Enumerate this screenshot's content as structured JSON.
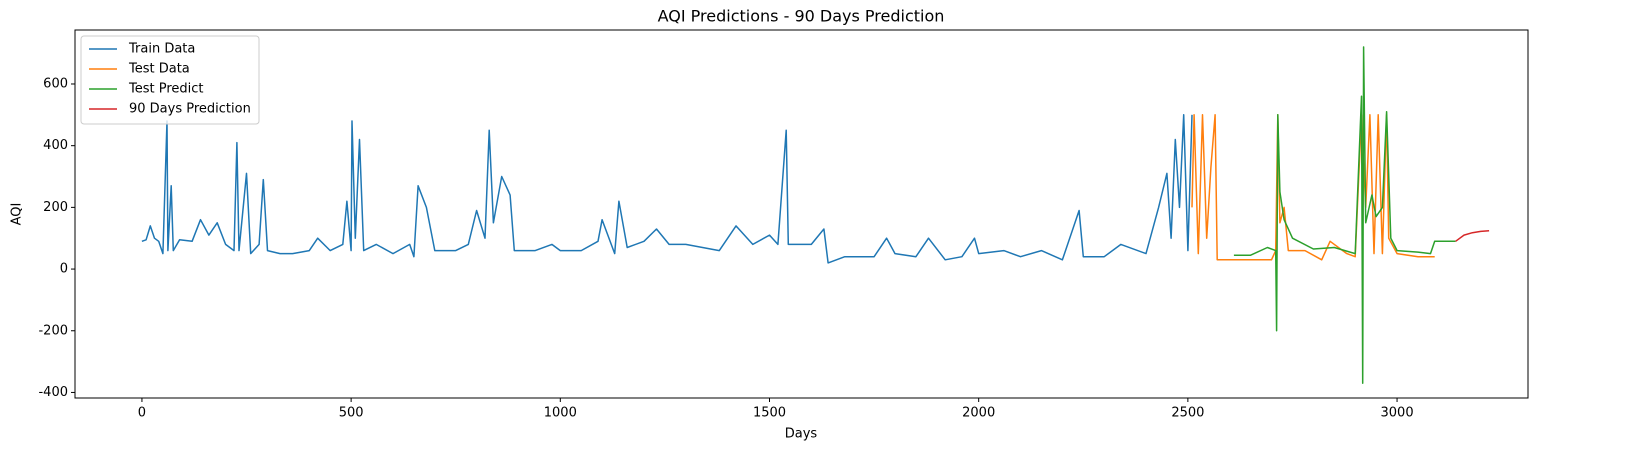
{
  "chart_data": {
    "type": "line",
    "title": "AQI Predictions - 90 Days Prediction",
    "xlabel": "Days",
    "ylabel": "AQI",
    "xlim": [
      -160,
      3313
    ],
    "ylim": [
      -418,
      775
    ],
    "xticks": [
      0,
      500,
      1000,
      1500,
      2000,
      2500,
      3000
    ],
    "yticks": [
      -400,
      -200,
      0,
      200,
      400,
      600
    ],
    "legend": "upper left",
    "series": [
      {
        "name": "Train Data",
        "color": "#1f77b4",
        "x": [
          0,
          10,
          20,
          30,
          40,
          50,
          60,
          62,
          70,
          75,
          90,
          120,
          140,
          160,
          180,
          200,
          220,
          227,
          232,
          250,
          260,
          280,
          290,
          300,
          330,
          360,
          400,
          420,
          450,
          480,
          490,
          500,
          502,
          510,
          520,
          530,
          560,
          600,
          640,
          650,
          660,
          680,
          700,
          750,
          780,
          800,
          820,
          830,
          840,
          860,
          880,
          890,
          940,
          980,
          1000,
          1050,
          1090,
          1100,
          1130,
          1140,
          1160,
          1200,
          1230,
          1260,
          1300,
          1380,
          1420,
          1460,
          1500,
          1520,
          1540,
          1545,
          1600,
          1630,
          1640,
          1680,
          1750,
          1780,
          1800,
          1850,
          1880,
          1920,
          1960,
          1990,
          2000,
          2060,
          2100,
          2150,
          2200,
          2240,
          2250,
          2300,
          2340,
          2400,
          2430,
          2450,
          2460,
          2470,
          2480,
          2490,
          2500,
          2510
        ],
        "values": [
          90,
          95,
          140,
          100,
          90,
          50,
          480,
          60,
          270,
          60,
          95,
          90,
          160,
          110,
          150,
          80,
          60,
          410,
          60,
          310,
          50,
          80,
          290,
          60,
          50,
          50,
          60,
          100,
          60,
          80,
          220,
          60,
          480,
          100,
          420,
          60,
          80,
          50,
          80,
          40,
          270,
          200,
          60,
          60,
          80,
          190,
          100,
          450,
          150,
          300,
          240,
          60,
          60,
          80,
          60,
          60,
          90,
          160,
          50,
          220,
          70,
          90,
          130,
          80,
          80,
          60,
          140,
          80,
          110,
          80,
          450,
          80,
          80,
          130,
          20,
          40,
          40,
          100,
          50,
          40,
          100,
          30,
          40,
          100,
          50,
          60,
          40,
          60,
          30,
          190,
          40,
          40,
          80,
          50,
          200,
          310,
          100,
          420,
          200,
          500,
          60,
          500
        ]
      },
      {
        "name": "Test Data",
        "color": "#ff7f0e",
        "x": [
          2510,
          2515,
          2525,
          2535,
          2545,
          2555,
          2565,
          2570,
          2600,
          2650,
          2700,
          2710,
          2715,
          2720,
          2730,
          2740,
          2780,
          2820,
          2840,
          2880,
          2900,
          2915,
          2925,
          2935,
          2945,
          2955,
          2965,
          2975,
          2980,
          3000,
          3050,
          3090
        ],
        "values": [
          200,
          500,
          50,
          500,
          100,
          330,
          500,
          30,
          30,
          30,
          30,
          60,
          500,
          150,
          200,
          60,
          60,
          30,
          90,
          50,
          40,
          500,
          200,
          500,
          50,
          500,
          50,
          500,
          100,
          50,
          40,
          40
        ]
      },
      {
        "name": "Test Predict",
        "color": "#2ca02c",
        "x": [
          2610,
          2650,
          2690,
          2710,
          2712,
          2715,
          2720,
          2730,
          2750,
          2800,
          2850,
          2900,
          2915,
          2918,
          2920,
          2925,
          2940,
          2950,
          2965,
          2975,
          2985,
          3000,
          3050,
          3080,
          3090,
          3140
        ],
        "values": [
          45,
          45,
          70,
          60,
          -200,
          500,
          250,
          160,
          100,
          65,
          70,
          50,
          560,
          -370,
          720,
          150,
          240,
          170,
          200,
          510,
          100,
          60,
          55,
          50,
          90,
          90
        ]
      },
      {
        "name": "90 Days Prediction",
        "color": "#d62728",
        "x": [
          3140,
          3160,
          3180,
          3200,
          3220
        ],
        "values": [
          90,
          110,
          118,
          122,
          124
        ]
      }
    ]
  }
}
